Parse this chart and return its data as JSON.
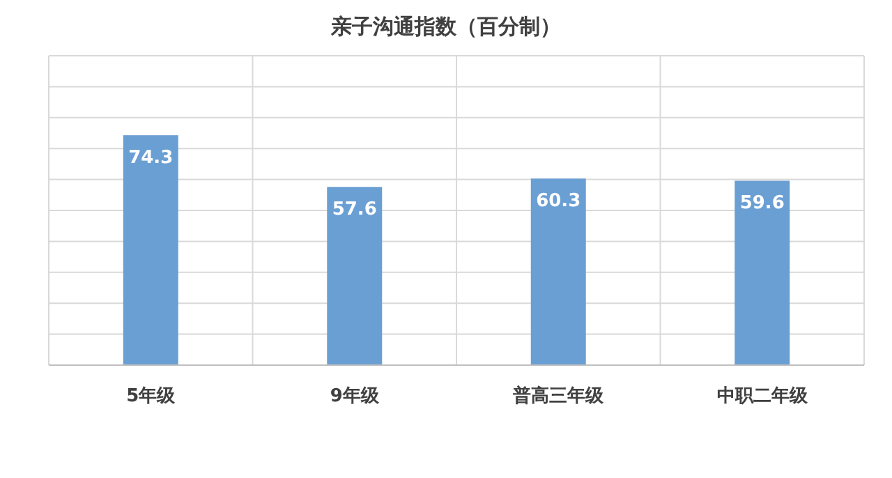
{
  "chart_data": {
    "type": "bar",
    "title": "亲子沟通指数（百分制）",
    "categories": [
      "5年级",
      "9年级",
      "普高三年级",
      "中职二年级"
    ],
    "values": [
      74.3,
      57.6,
      60.3,
      59.6
    ],
    "color": "#6a9fd4",
    "ylim": [
      0,
      100
    ],
    "yticks": [
      {
        "value": 0,
        "label": null
      },
      {
        "value": 10,
        "label": null
      },
      {
        "value": 20,
        "label": null
      },
      {
        "value": 30,
        "label": null
      },
      {
        "value": 40,
        "label": null
      },
      {
        "value": 50,
        "label": null
      },
      {
        "value": 60,
        "label": null
      },
      {
        "value": 70,
        "label": null
      },
      {
        "value": 80,
        "label": null
      },
      {
        "value": 90,
        "label": null
      },
      {
        "value": 100,
        "label": null
      }
    ],
    "grid": true,
    "data_labels": true,
    "tick_labels": "x"
  }
}
